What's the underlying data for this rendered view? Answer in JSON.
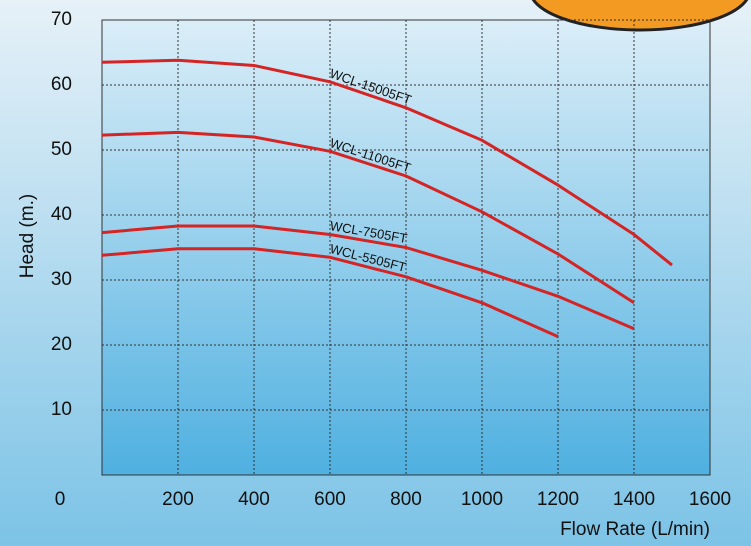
{
  "chart_data": {
    "type": "line",
    "x_label": "Flow Rate (L/min)",
    "y_label": "Head (m.)",
    "x": [
      0,
      200,
      400,
      600,
      800,
      1000,
      1200,
      1400,
      1500
    ],
    "series": [
      {
        "name": "WCL-15005FT",
        "color": "#d42424",
        "values": [
          63.5,
          63.8,
          63,
          60.5,
          56.5,
          51.5,
          44.6,
          37,
          32.3
        ]
      },
      {
        "name": "WCL-11005FT",
        "color": "#d42424",
        "values": [
          52.3,
          52.7,
          52,
          49.8,
          46,
          40.5,
          34,
          26.5,
          null
        ]
      },
      {
        "name": "WCL-7505FT",
        "color": "#d42424",
        "values": [
          37.3,
          38.3,
          38.3,
          37,
          35,
          31.5,
          27.5,
          22.5,
          null
        ]
      },
      {
        "name": "WCL-5505FT",
        "color": "#d42424",
        "values": [
          33.8,
          34.8,
          34.8,
          33.5,
          30.5,
          26.5,
          21.3,
          null,
          null
        ]
      }
    ],
    "xlim": [
      0,
      1600
    ],
    "ylim": [
      0,
      70
    ],
    "xticks": [
      200,
      400,
      600,
      800,
      1000,
      1200,
      1400,
      1600
    ],
    "yticks": [
      0,
      10,
      20,
      30,
      40,
      50,
      60,
      70
    ],
    "grid": true
  }
}
